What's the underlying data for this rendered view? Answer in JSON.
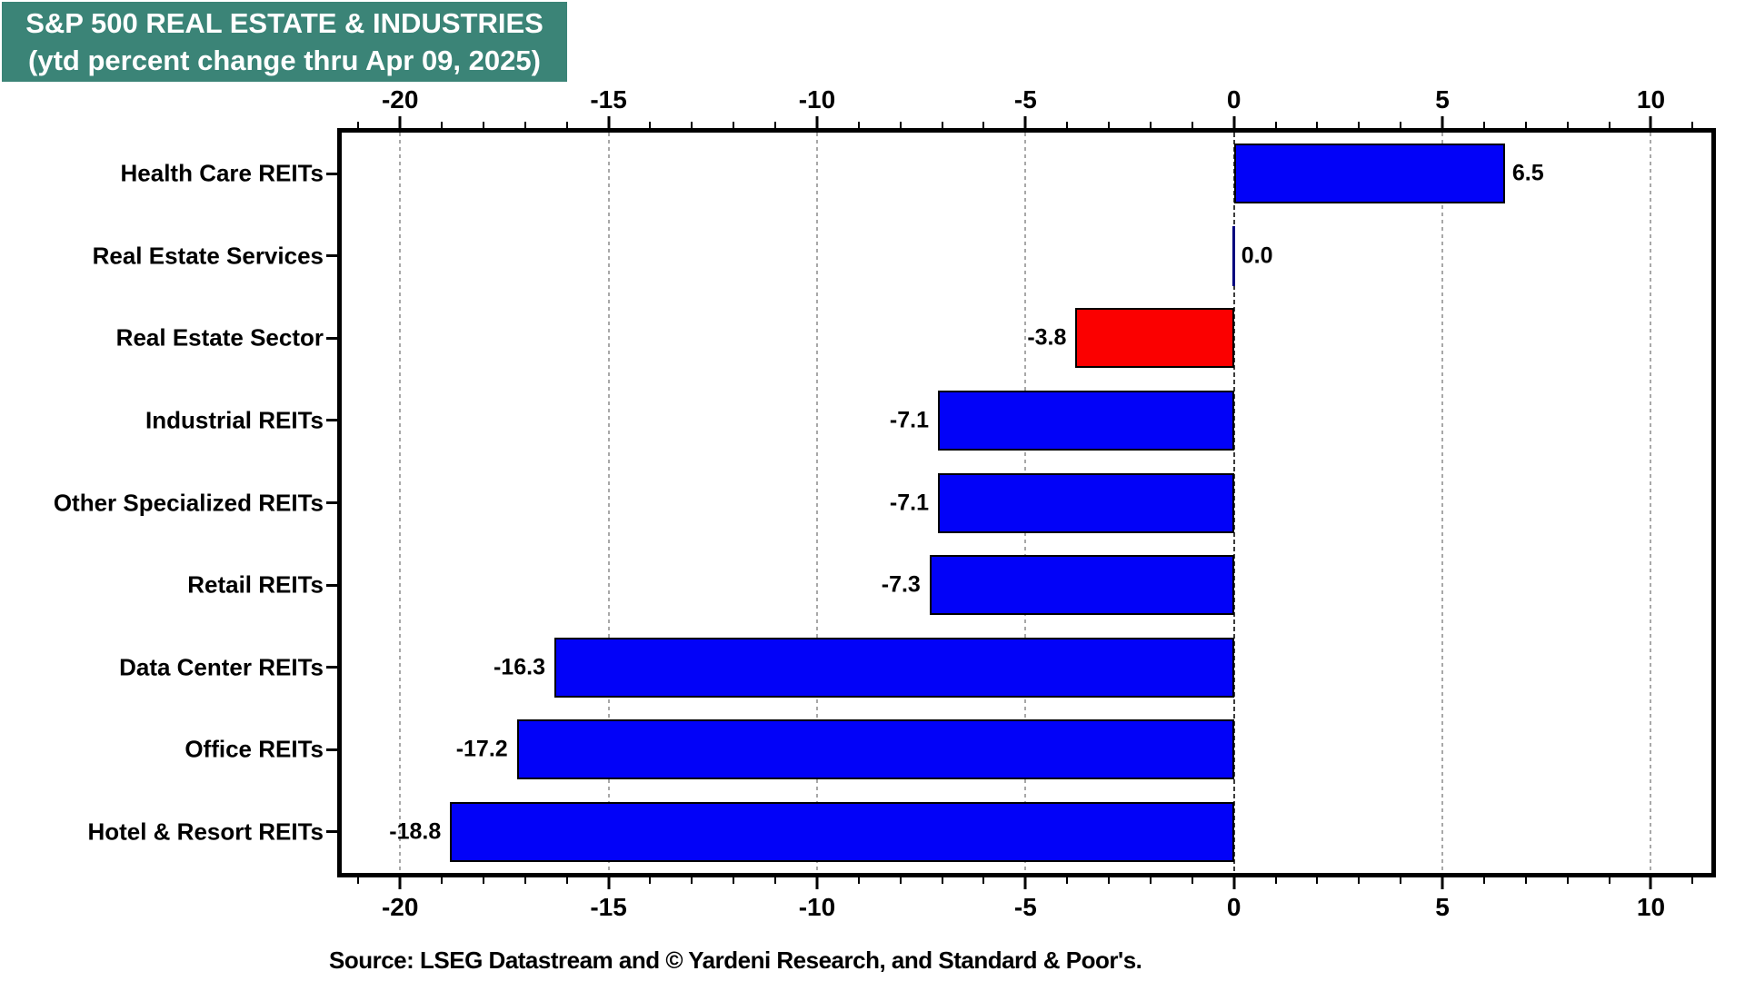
{
  "title": {
    "line1": "S&P 500 REAL ESTATE & INDUSTRIES",
    "line2": "(ytd percent change thru Apr 09, 2025)",
    "bg_color": "#3B8477",
    "text_color": "#FFFFFF"
  },
  "source": "Source: LSEG Datastream and © Yardeni Research, and Standard & Poor's.",
  "chart_data": {
    "type": "bar",
    "orientation": "horizontal",
    "title": "S&P 500 REAL ESTATE & INDUSTRIES (ytd percent change thru Apr 09, 2025)",
    "categories": [
      "Health Care REITs",
      "Real Estate Services",
      "Real Estate Sector",
      "Industrial REITs",
      "Other Specialized REITs",
      "Retail REITs",
      "Data Center REITs",
      "Office REITs",
      "Hotel & Resort REITs"
    ],
    "values": [
      6.5,
      0.0,
      -3.8,
      -7.1,
      -7.1,
      -7.3,
      -16.3,
      -17.2,
      -18.8
    ],
    "value_labels": [
      "6.5",
      "0.0",
      "-3.8",
      "-7.1",
      "-7.1",
      "-7.3",
      "-16.3",
      "-17.2",
      "-18.8"
    ],
    "bar_colors": [
      "#0202F8",
      "#00007E",
      "#FB0000",
      "#0202F8",
      "#0202F8",
      "#0202F8",
      "#0202F8",
      "#0202F8",
      "#0202F8"
    ],
    "xlim": [
      -21.4,
      11.45
    ],
    "major_ticks": [
      -20,
      -15,
      -10,
      -5,
      0,
      5,
      10
    ],
    "major_tick_labels": [
      "-20",
      "-15",
      "-10",
      "-5",
      "0",
      "5",
      "10"
    ],
    "minor_tick_step": 1,
    "grid": "vertical dotted at major ticks, darker dashed at zero",
    "legend": "none",
    "axis_label_position": "top and bottom"
  },
  "colors": {
    "grid": "#A8A8A8",
    "zero_grid": "#3C3C3C",
    "axis_frame": "#000000",
    "background": "#FFFFFF"
  }
}
